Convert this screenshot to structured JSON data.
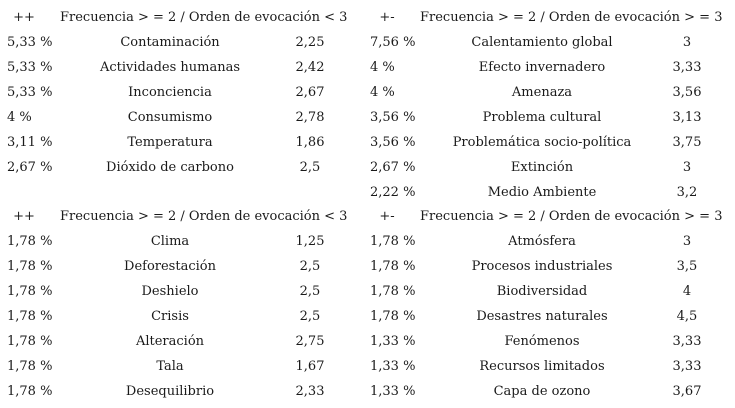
{
  "quadrants": [
    {
      "id": "top-left",
      "sign": "++",
      "condition": "Frecuencia > = 2 / Orden de evocación < 3",
      "rows": [
        {
          "freq": "5,33 %",
          "term": "Contaminación",
          "order": "2,25"
        },
        {
          "freq": "5,33 %",
          "term": "Actividades humanas",
          "order": "2,42"
        },
        {
          "freq": "5,33 %",
          "term": "Inconciencia",
          "order": "2,67"
        },
        {
          "freq": "4 %",
          "term": "Consumismo",
          "order": "2,78"
        },
        {
          "freq": "3,11 %",
          "term": "Temperatura",
          "order": "1,86"
        },
        {
          "freq": "2,67 %",
          "term": "Dióxido de carbono",
          "order": "2,5"
        }
      ]
    },
    {
      "id": "top-right",
      "sign": "+-",
      "condition": "Frecuencia > = 2 / Orden de evocación > = 3",
      "rows": [
        {
          "freq": "7,56 %",
          "term": "Calentamiento global",
          "order": "3"
        },
        {
          "freq": "4 %",
          "term": "Efecto invernadero",
          "order": "3,33"
        },
        {
          "freq": "4 %",
          "term": "Amenaza",
          "order": "3,56"
        },
        {
          "freq": "3,56 %",
          "term": "Problema cultural",
          "order": "3,13"
        },
        {
          "freq": "3,56 %",
          "term": "Problemática socio-política",
          "order": "3,75"
        },
        {
          "freq": "2,67 %",
          "term": "Extinción",
          "order": "3"
        },
        {
          "freq": "2,22 %",
          "term": "Medio Ambiente",
          "order": "3,2"
        }
      ]
    },
    {
      "id": "bottom-left",
      "sign": "++",
      "condition": "Frecuencia > = 2 / Orden de evocación < 3",
      "rows": [
        {
          "freq": "1,78 %",
          "term": "Clima",
          "order": "1,25"
        },
        {
          "freq": "1,78 %",
          "term": "Deforestación",
          "order": "2,5"
        },
        {
          "freq": "1,78 %",
          "term": "Deshielo",
          "order": "2,5"
        },
        {
          "freq": "1,78 %",
          "term": "Crisis",
          "order": "2,5"
        },
        {
          "freq": "1,78 %",
          "term": "Alteración",
          "order": "2,75"
        },
        {
          "freq": "1,78 %",
          "term": "Tala",
          "order": "1,67"
        },
        {
          "freq": "1,78 %",
          "term": "Desequilibrio",
          "order": "2,33"
        }
      ]
    },
    {
      "id": "bottom-right",
      "sign": "+-",
      "condition": "Frecuencia > = 2 / Orden de evocación > = 3",
      "rows": [
        {
          "freq": "1,78 %",
          "term": "Atmósfera",
          "order": "3"
        },
        {
          "freq": "1,78 %",
          "term": "Procesos industriales",
          "order": "3,5"
        },
        {
          "freq": "1,78 %",
          "term": "Biodiversidad",
          "order": "4"
        },
        {
          "freq": "1,78 %",
          "term": "Desastres naturales",
          "order": "4,5"
        },
        {
          "freq": "1,33 %",
          "term": "Fenómenos",
          "order": "3,33"
        },
        {
          "freq": "1,33 %",
          "term": "Recursos limitados",
          "order": "3,33"
        },
        {
          "freq": "1,33 %",
          "term": "Capa de ozono",
          "order": "3,67"
        }
      ]
    }
  ]
}
